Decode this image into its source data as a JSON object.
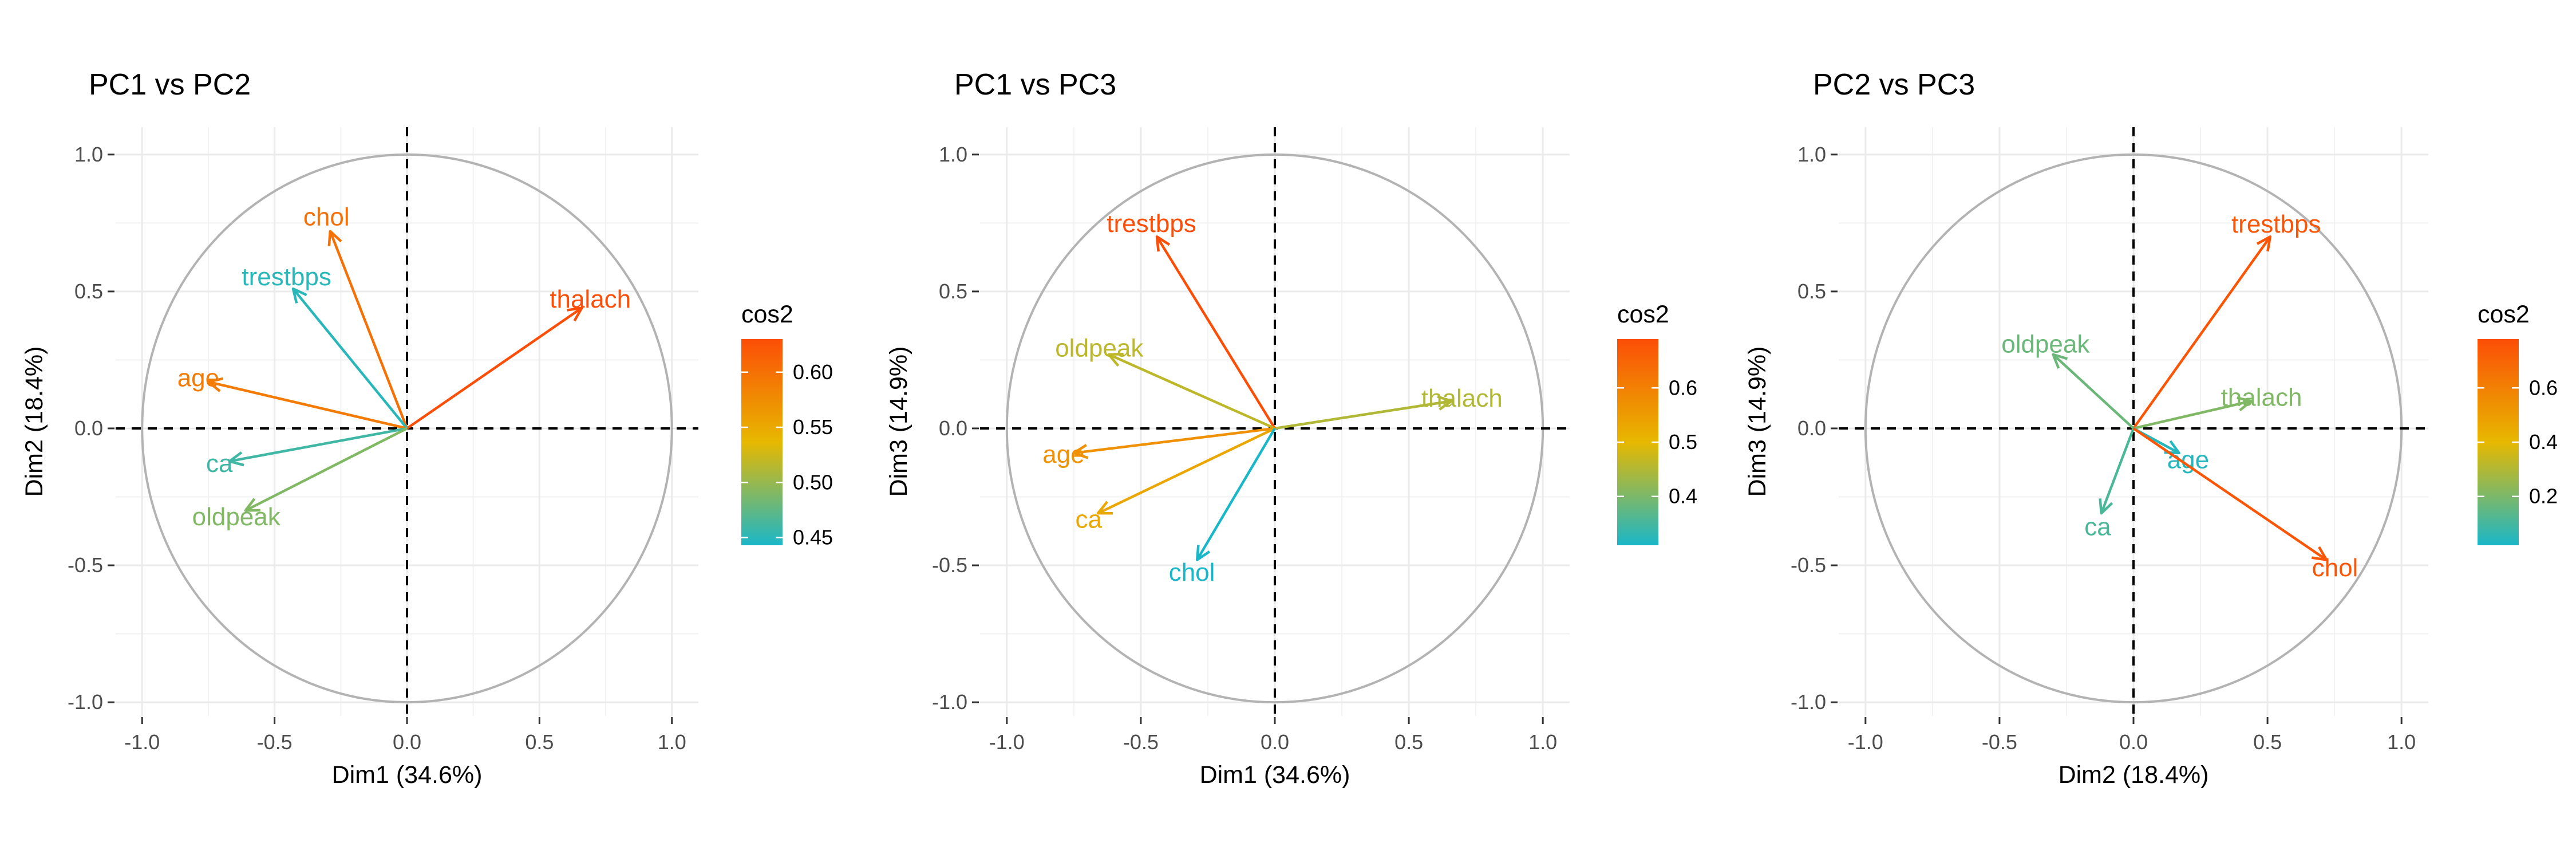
{
  "chart_data": [
    {
      "type": "vector",
      "title": "PC1 vs PC2",
      "xlabel": "Dim1 (34.6%)",
      "ylabel": "Dim2 (18.4%)",
      "xlim": [
        -1.1,
        1.1
      ],
      "ylim": [
        -1.05,
        1.1
      ],
      "xticks": [
        -1.0,
        -0.5,
        0.0,
        0.5,
        1.0
      ],
      "yticks": [
        -1.0,
        -0.5,
        0.0,
        0.5,
        1.0
      ],
      "xtick_labels": [
        "-1.0",
        "-0.5",
        "0.0",
        "0.5",
        "1.0"
      ],
      "ytick_labels": [
        "-1.0",
        "-0.5",
        "0.0",
        "0.5",
        "1.0"
      ],
      "grid": true,
      "legend": {
        "title": "cos2",
        "position": "right",
        "range": [
          0.443,
          0.63
        ],
        "ticks": [
          0.45,
          0.5,
          0.55,
          0.6
        ],
        "tick_labels": [
          "0.45",
          "0.50",
          "0.55",
          "0.60"
        ]
      },
      "vectors": [
        {
          "name": "thalach",
          "x": 0.66,
          "y": 0.44,
          "cos2": 0.63
        },
        {
          "name": "chol",
          "x": -0.29,
          "y": 0.72,
          "cos2": 0.6
        },
        {
          "name": "trestbps",
          "x": -0.43,
          "y": 0.51,
          "cos2": 0.45
        },
        {
          "name": "age",
          "x": -0.75,
          "y": 0.17,
          "cos2": 0.59
        },
        {
          "name": "ca",
          "x": -0.67,
          "y": -0.12,
          "cos2": 0.46
        },
        {
          "name": "oldpeak",
          "x": -0.61,
          "y": -0.3,
          "cos2": 0.49
        }
      ]
    },
    {
      "type": "vector",
      "title": "PC1 vs PC3",
      "xlabel": "Dim1 (34.6%)",
      "ylabel": "Dim3 (14.9%)",
      "xlim": [
        -1.1,
        1.1
      ],
      "ylim": [
        -1.05,
        1.1
      ],
      "xticks": [
        -1.0,
        -0.5,
        0.0,
        0.5,
        1.0
      ],
      "yticks": [
        -1.0,
        -0.5,
        0.0,
        0.5,
        1.0
      ],
      "xtick_labels": [
        "-1.0",
        "-0.5",
        "0.0",
        "0.5",
        "1.0"
      ],
      "ytick_labels": [
        "-1.0",
        "-0.5",
        "0.0",
        "0.5",
        "1.0"
      ],
      "grid": true,
      "legend": {
        "title": "cos2",
        "position": "right",
        "range": [
          0.31,
          0.69
        ],
        "ticks": [
          0.4,
          0.5,
          0.6
        ],
        "tick_labels": [
          "0.4",
          "0.5",
          "0.6"
        ]
      },
      "vectors": [
        {
          "name": "thalach",
          "x": 0.66,
          "y": 0.1,
          "cos2": 0.45
        },
        {
          "name": "trestbps",
          "x": -0.44,
          "y": 0.7,
          "cos2": 0.69
        },
        {
          "name": "oldpeak",
          "x": -0.62,
          "y": 0.27,
          "cos2": 0.46
        },
        {
          "name": "age",
          "x": -0.75,
          "y": -0.09,
          "cos2": 0.57
        },
        {
          "name": "ca",
          "x": -0.66,
          "y": -0.31,
          "cos2": 0.53
        },
        {
          "name": "chol",
          "x": -0.29,
          "y": -0.48,
          "cos2": 0.31
        }
      ]
    },
    {
      "type": "vector",
      "title": "PC2 vs PC3",
      "xlabel": "Dim2 (18.4%)",
      "ylabel": "Dim3 (14.9%)",
      "xlim": [
        -1.1,
        1.1
      ],
      "ylim": [
        -1.05,
        1.1
      ],
      "xticks": [
        -1.0,
        -0.5,
        0.0,
        0.5,
        1.0
      ],
      "yticks": [
        -1.0,
        -0.5,
        0.0,
        0.5,
        1.0
      ],
      "xtick_labels": [
        "-1.0",
        "-0.5",
        "0.0",
        "0.5",
        "1.0"
      ],
      "ytick_labels": [
        "-1.0",
        "-0.5",
        "0.0",
        "0.5",
        "1.0"
      ],
      "grid": true,
      "legend": {
        "title": "cos2",
        "position": "right",
        "range": [
          0.02,
          0.78
        ],
        "ticks": [
          0.2,
          0.4,
          0.6
        ],
        "tick_labels": [
          "0.2",
          "0.4",
          "0.6"
        ]
      },
      "vectors": [
        {
          "name": "trestbps",
          "x": 0.51,
          "y": 0.7,
          "cos2": 0.75
        },
        {
          "name": "oldpeak",
          "x": -0.3,
          "y": 0.27,
          "cos2": 0.17
        },
        {
          "name": "thalach",
          "x": 0.44,
          "y": 0.1,
          "cos2": 0.21
        },
        {
          "name": "age",
          "x": 0.17,
          "y": -0.09,
          "cos2": 0.04
        },
        {
          "name": "ca",
          "x": -0.12,
          "y": -0.31,
          "cos2": 0.11
        },
        {
          "name": "chol",
          "x": 0.72,
          "y": -0.48,
          "cos2": 0.75
        }
      ]
    }
  ]
}
